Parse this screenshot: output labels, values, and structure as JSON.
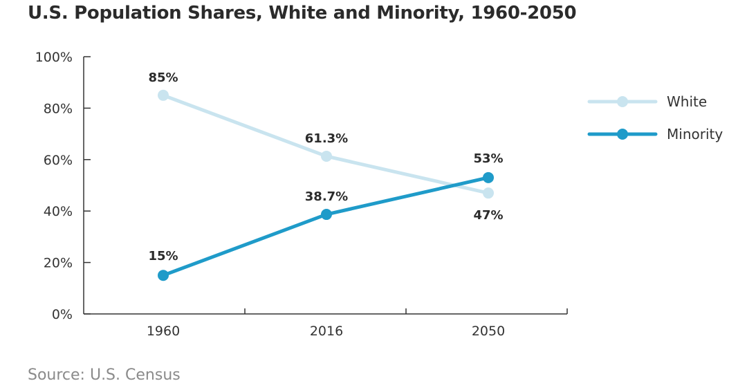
{
  "title": "U.S. Population Shares, White and Minority, 1960-2050",
  "source": "Source: U.S. Census",
  "colors": {
    "white": "#c9e4ef",
    "minority": "#1f9bc9",
    "axis": "#333333"
  },
  "chart_data": {
    "type": "line",
    "title": "U.S. Population Shares, White and Minority, 1960-2050",
    "categories": [
      "1960",
      "2016",
      "2050"
    ],
    "ylim": [
      0,
      100
    ],
    "yticks": [
      "0%",
      "20%",
      "40%",
      "60%",
      "80%",
      "100%"
    ],
    "grid": false,
    "legend_position": "right",
    "series": [
      {
        "name": "White",
        "values": [
          85,
          61.3,
          47
        ],
        "labels": [
          "85%",
          "61.3%",
          "47%"
        ],
        "color": "#c9e4ef"
      },
      {
        "name": "Minority",
        "values": [
          15,
          38.7,
          53
        ],
        "labels": [
          "15%",
          "38.7%",
          "53%"
        ],
        "color": "#1f9bc9"
      }
    ]
  }
}
